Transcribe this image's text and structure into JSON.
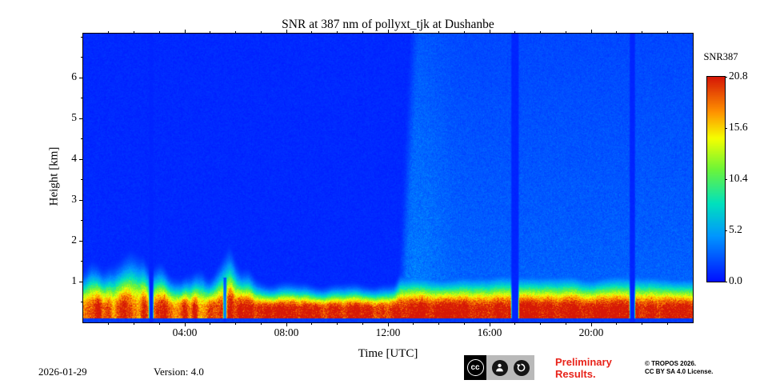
{
  "chart_data": {
    "type": "heatmap",
    "title": "SNR at 387 nm of pollyxt_tjk at Dushanbe",
    "xlabel": "Time [UTC]",
    "ylabel": "Height [km]",
    "x_range_hours": [
      0,
      24
    ],
    "x_major_ticks": [
      {
        "hour": 4,
        "label": "04:00"
      },
      {
        "hour": 8,
        "label": "08:00"
      },
      {
        "hour": 12,
        "label": "12:00"
      },
      {
        "hour": 16,
        "label": "16:00"
      },
      {
        "hour": 20,
        "label": "20:00"
      }
    ],
    "x_minor_tick_every_hours": 1,
    "y_range_km": [
      0,
      7.08
    ],
    "y_major_ticks": [
      1,
      2,
      3,
      4,
      5,
      6
    ],
    "y_minor_tick_every_km": 0.5,
    "colorbar": {
      "label": "SNR387",
      "min": 0,
      "max": 20.8,
      "tick_labels": [
        "20.8",
        "15.6",
        "10.4",
        "5.2",
        "0.0"
      ],
      "colormap": "jet-like",
      "colormap_stops": [
        [
          0.0,
          [
            0,
            16,
            255
          ]
        ],
        [
          0.22,
          [
            0,
            150,
            255
          ]
        ],
        [
          0.38,
          [
            0,
            225,
            190
          ]
        ],
        [
          0.55,
          [
            110,
            245,
            55
          ]
        ],
        [
          0.7,
          [
            245,
            255,
            0
          ]
        ],
        [
          0.83,
          [
            255,
            145,
            0
          ]
        ],
        [
          1.0,
          [
            214,
            24,
            6
          ]
        ]
      ]
    },
    "features": {
      "surface_layer": {
        "core_top_km": 0.32,
        "peak_snr": 21,
        "top_km_night_00_07": 1.7,
        "top_km_morning_07_12": 0.8,
        "top_km_afternoon_12_24": 1.1
      },
      "elevated_background_onset_hour": 12.35,
      "elevated_background_snr": 2.5,
      "data_gaps": [
        {
          "hour": 2.68,
          "half_width_h": 0.07
        },
        {
          "hour": 17.0,
          "half_width_h": 0.13
        },
        {
          "hour": 21.62,
          "half_width_h": 0.09
        }
      ],
      "low_layer_notch_hour": 5.58,
      "overlap_blind_zone_km": 0.1
    }
  },
  "footer": {
    "date": "2026-01-29",
    "version": "Version: 4.0",
    "preliminary_line1": "Preliminary",
    "preliminary_line2": "Results.",
    "preliminary_color": "#e8231a",
    "copyright_line1": "© TROPOS 2026.",
    "copyright_line2": "CC BY SA 4.0 License.",
    "cc_badge": {
      "cc": "cc",
      "by": "BY",
      "sa": "SA"
    }
  }
}
